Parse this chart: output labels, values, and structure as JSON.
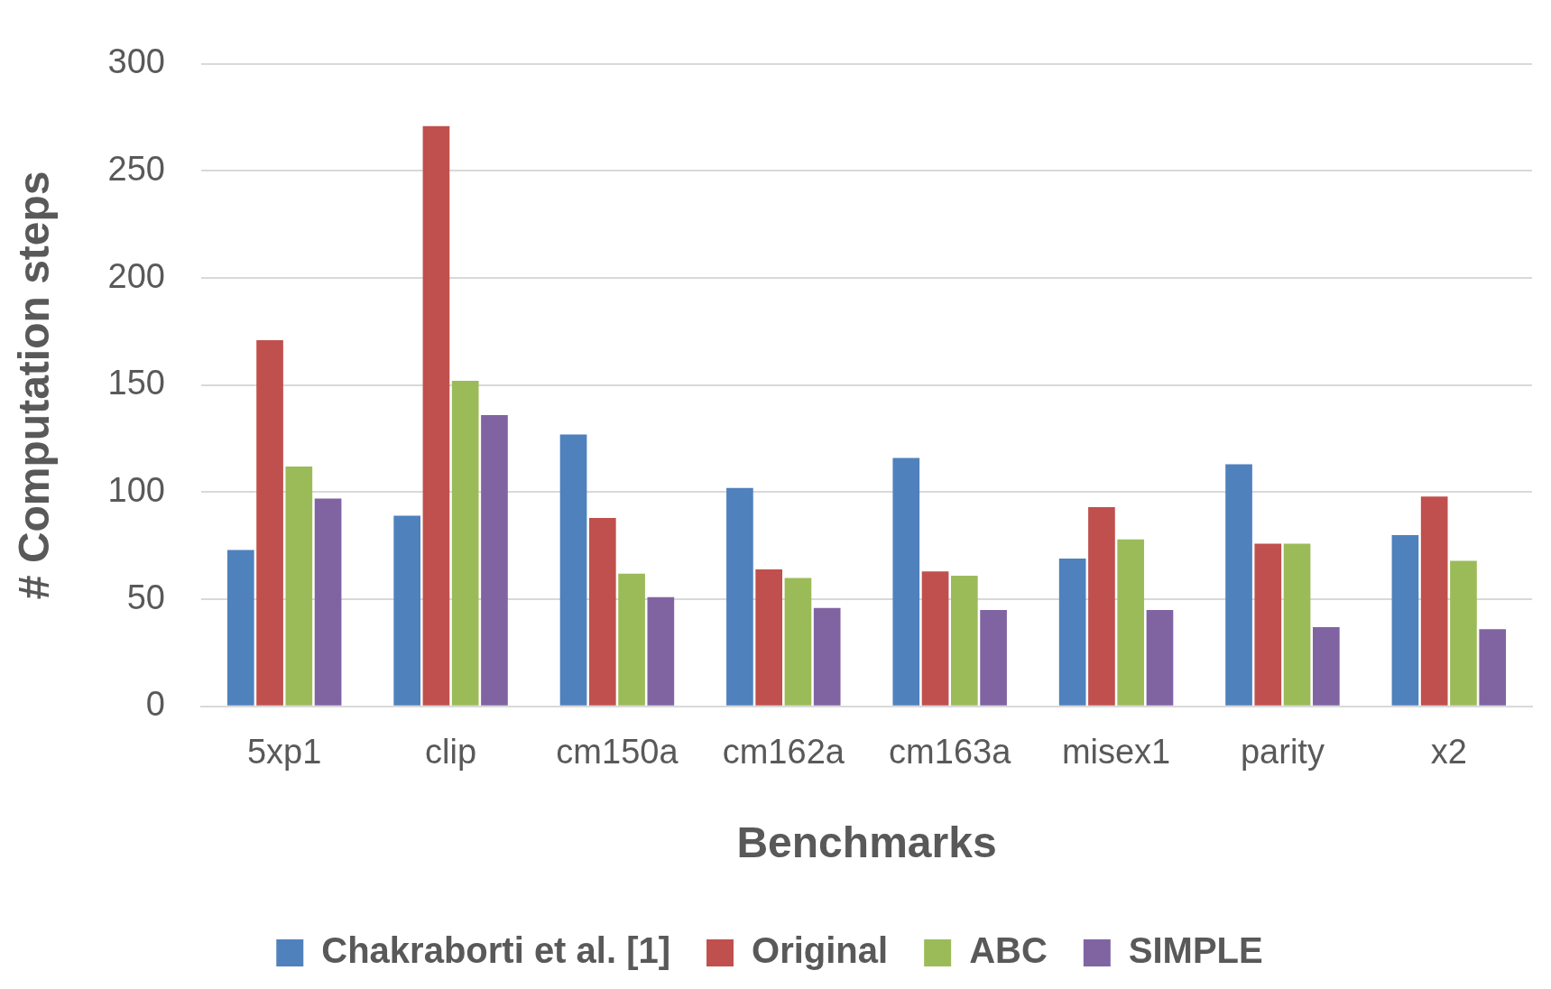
{
  "chart_data": {
    "type": "bar",
    "xlabel": "Benchmarks",
    "ylabel": "# Computation steps",
    "categories": [
      "5xp1",
      "clip",
      "cm150a",
      "cm162a",
      "cm163a",
      "misex1",
      "parity",
      "x2"
    ],
    "series": [
      {
        "name": "Chakraborti et al. [1]",
        "color": "#4f81bd",
        "values": [
          73,
          89,
          127,
          102,
          116,
          69,
          113,
          80
        ]
      },
      {
        "name": "Original",
        "color": "#c0504d",
        "values": [
          171,
          271,
          88,
          64,
          63,
          93,
          76,
          98
        ]
      },
      {
        "name": "ABC",
        "color": "#9bbb59",
        "values": [
          112,
          152,
          62,
          60,
          61,
          78,
          76,
          68
        ]
      },
      {
        "name": "SIMPLE",
        "color": "#8064a2",
        "values": [
          97,
          136,
          51,
          46,
          45,
          45,
          37,
          36
        ]
      }
    ],
    "ylim": [
      0,
      300
    ],
    "yticks": [
      0,
      50,
      100,
      150,
      200,
      250,
      300
    ],
    "grid": "y",
    "legend": "bottom"
  }
}
